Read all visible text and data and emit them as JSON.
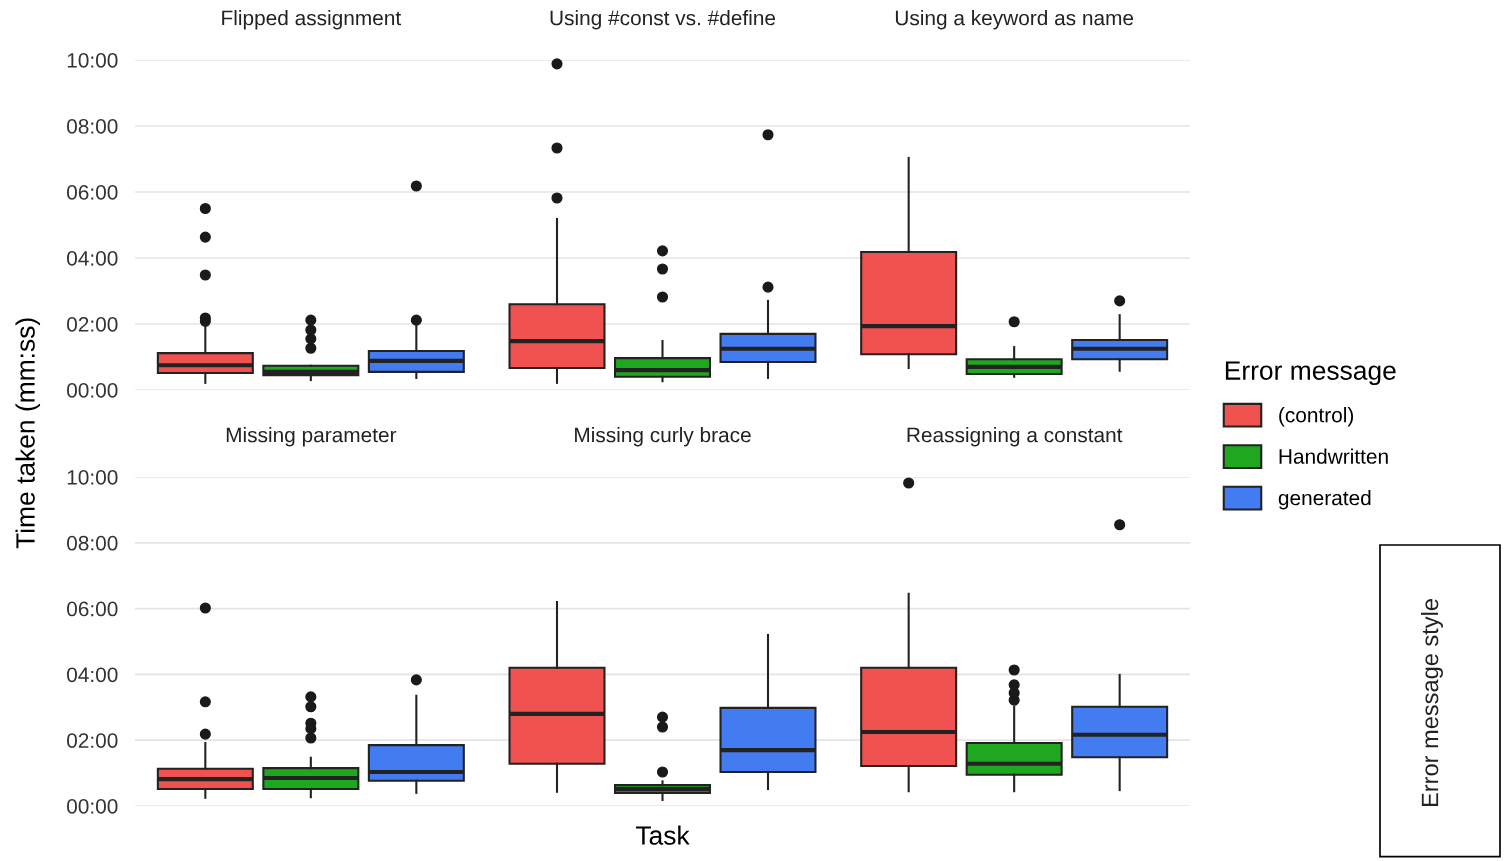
{
  "chart_data": [
    {
      "type": "box",
      "ylabel": "Time taken (mm:ss)",
      "legend_title": "Error message",
      "legend": "right",
      "grid": "y",
      "categories": [
        "Flipped assignment",
        "Using #const vs. #define",
        "Using a keyword as name"
      ],
      "ylim": [
        0,
        600
      ],
      "yticks": [
        {
          "value": 0,
          "label": "00:00"
        },
        {
          "value": 120,
          "label": "02:00"
        },
        {
          "value": 240,
          "label": "04:00"
        },
        {
          "value": 360,
          "label": "06:00"
        },
        {
          "value": 480,
          "label": "08:00"
        },
        {
          "value": 600,
          "label": "10:00"
        }
      ],
      "series": [
        {
          "name": "(control)",
          "color": "#f0524f",
          "boxes": [
            {
              "low": 13,
              "q1": 31,
              "median": 45,
              "q3": 67,
              "high": 118,
              "outliers": [
                125,
                131,
                209,
                278,
                330
              ]
            },
            {
              "low": 13,
              "q1": 40,
              "median": 89,
              "q3": 156,
              "high": 311,
              "outliers": [
                349,
                440,
                593
              ]
            },
            {
              "low": 40,
              "q1": 65,
              "median": 116,
              "q3": 251,
              "high": 422
            }
          ]
        },
        {
          "name": "Handwritten",
          "color": "#1fa81f",
          "boxes": [
            {
              "low": 18,
              "q1": 27,
              "median": 33,
              "q3": 44,
              "high": 44,
              "outliers": [
                76,
                93,
                109,
                127
              ]
            },
            {
              "low": 16,
              "q1": 24,
              "median": 36,
              "q3": 58,
              "high": 89,
              "outliers": [
                169,
                220,
                253
              ]
            },
            {
              "low": 24,
              "q1": 29,
              "median": 42,
              "q3": 56,
              "high": 78,
              "outliers": [
                124
              ]
            }
          ]
        },
        {
          "name": "generated",
          "color": "#437bf0",
          "boxes": [
            {
              "low": 22,
              "q1": 33,
              "median": 53,
              "q3": 71,
              "high": 118,
              "outliers": [
                127,
                371
              ]
            },
            {
              "low": 22,
              "q1": 51,
              "median": 75,
              "q3": 102,
              "high": 162,
              "outliers": [
                187,
                464
              ]
            },
            {
              "low": 35,
              "q1": 56,
              "median": 75,
              "q3": 91,
              "high": 136,
              "outliers": [
                162
              ]
            }
          ]
        }
      ]
    },
    {
      "type": "box",
      "xlabel": "Task",
      "grid": "y",
      "annotations": [
        "Error message style"
      ],
      "categories": [
        "Missing parameter",
        "Missing curly brace",
        "Reassigning a constant"
      ],
      "ylim": [
        0,
        600
      ],
      "yticks": [
        {
          "value": 0,
          "label": "00:00"
        },
        {
          "value": 120,
          "label": "02:00"
        },
        {
          "value": 240,
          "label": "04:00"
        },
        {
          "value": 360,
          "label": "06:00"
        },
        {
          "value": 480,
          "label": "08:00"
        },
        {
          "value": 600,
          "label": "10:00"
        }
      ],
      "series": [
        {
          "color": "#f0524f",
          "boxes": [
            {
              "low": 15,
              "q1": 31,
              "median": 49,
              "q3": 68,
              "high": 115,
              "outliers": [
                131,
                190,
                361
              ]
            },
            {
              "low": 26,
              "q1": 77,
              "median": 168,
              "q3": 252,
              "high": 372
            },
            {
              "low": 27,
              "q1": 73,
              "median": 135,
              "q3": 252,
              "high": 387,
              "outliers": [
                589
              ]
            }
          ]
        },
        {
          "color": "#1fa81f",
          "boxes": [
            {
              "low": 16,
              "q1": 31,
              "median": 51,
              "q3": 69,
              "high": 88,
              "outliers": [
                124,
                141,
                151,
                181,
                199
              ]
            },
            {
              "low": 11,
              "q1": 24,
              "median": 31,
              "q3": 38,
              "high": 45,
              "outliers": [
                62,
                144,
                162
              ]
            },
            {
              "low": 27,
              "q1": 57,
              "median": 77,
              "q3": 115,
              "high": 181,
              "outliers": [
                193,
                206,
                221,
                248
              ]
            }
          ]
        },
        {
          "color": "#437bf0",
          "boxes": [
            {
              "low": 24,
              "q1": 46,
              "median": 62,
              "q3": 111,
              "high": 201,
              "outliers": [
                230
              ]
            },
            {
              "low": 31,
              "q1": 62,
              "median": 102,
              "q3": 179,
              "high": 312
            },
            {
              "low": 29,
              "q1": 89,
              "median": 130,
              "q3": 181,
              "high": 239,
              "outliers": [
                513
              ]
            }
          ]
        }
      ]
    }
  ]
}
